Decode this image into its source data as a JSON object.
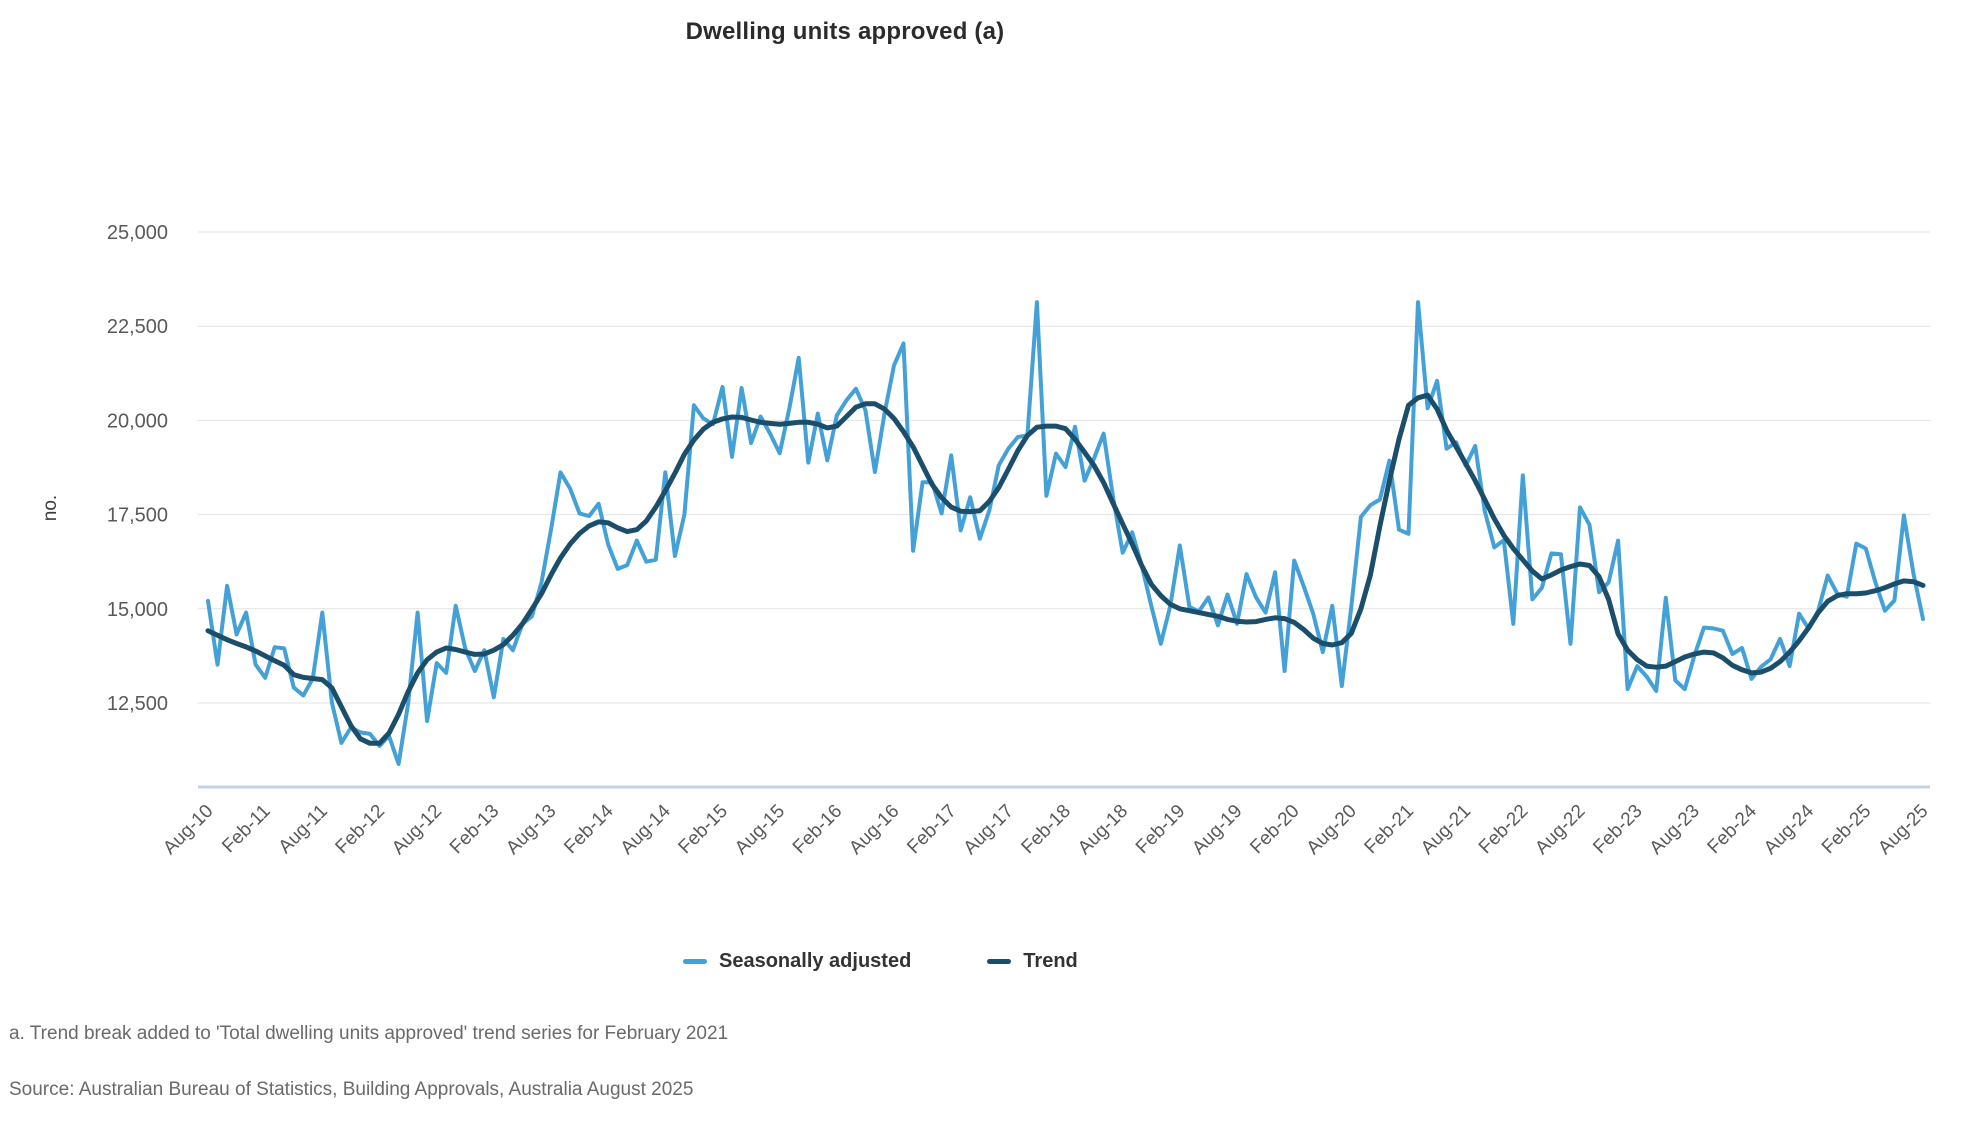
{
  "title": "Dwelling units approved (a)",
  "legend": {
    "seasonally_adjusted_label": "Seasonally adjusted",
    "trend_label": "Trend"
  },
  "footnotes": {
    "note_a": "a. Trend break added to 'Total dwelling units approved' trend series for February 2021",
    "source": "Source: Australian Bureau of Statistics, Building Approvals, Australia August 2025"
  },
  "colors": {
    "seasonally_adjusted": "#44a1d8",
    "trend": "#1b4e6b",
    "gridline": "#e2e2e2",
    "axis_line": "#c3d2e7",
    "tick_text": "#595959"
  },
  "chart_data": {
    "type": "line",
    "title": "Dwelling units approved (a)",
    "xlabel": "",
    "ylabel": "no.",
    "ylim": [
      10250,
      25000
    ],
    "grid": "horizontal",
    "legend_position": "bottom",
    "x_frequency": "monthly",
    "x_range": [
      "Aug-10",
      "Aug-25"
    ],
    "x_tick_labels": [
      "Aug-10",
      "Feb-11",
      "Aug-11",
      "Feb-12",
      "Aug-12",
      "Feb-13",
      "Aug-13",
      "Feb-14",
      "Aug-14",
      "Feb-15",
      "Aug-15",
      "Feb-16",
      "Aug-16",
      "Feb-17",
      "Aug-17",
      "Feb-18",
      "Aug-18",
      "Feb-19",
      "Aug-19",
      "Feb-20",
      "Aug-20",
      "Feb-21",
      "Aug-21",
      "Feb-22",
      "Aug-22",
      "Feb-23",
      "Aug-23",
      "Feb-24",
      "Aug-24",
      "Feb-25",
      "Aug-25"
    ],
    "x_ticks_every_n_months": 6,
    "y_ticks": {
      "labels": [
        "25,000",
        "22,500",
        "20,000",
        "17,500",
        "15,000",
        "12,500"
      ],
      "values": [
        25000,
        22500,
        20000,
        17500,
        15000,
        12500
      ]
    },
    "series": [
      {
        "name": "Seasonally adjusted",
        "color": "#44a1d8",
        "stroke_width": 4,
        "values": [
          15210,
          13520,
          15610,
          14320,
          14900,
          13520,
          13170,
          13980,
          13950,
          12910,
          12700,
          13150,
          14900,
          12510,
          11440,
          11850,
          11720,
          11680,
          11360,
          11630,
          10880,
          12480,
          14900,
          12020,
          13560,
          13300,
          15080,
          13940,
          13350,
          13900,
          12650,
          14200,
          13900,
          14600,
          14800,
          15700,
          17100,
          18620,
          18190,
          17530,
          17460,
          17790,
          16700,
          16060,
          16160,
          16810,
          16250,
          16300,
          18620,
          16400,
          17500,
          20400,
          20050,
          19900,
          20890,
          19030,
          20860,
          19400,
          20100,
          19650,
          19130,
          20300,
          21660,
          18880,
          20180,
          18940,
          20130,
          20530,
          20840,
          20270,
          18630,
          20180,
          21460,
          22040,
          16540,
          18360,
          18360,
          17530,
          19070,
          17080,
          17960,
          16860,
          17610,
          18810,
          19250,
          19560,
          19600,
          23140,
          18000,
          19120,
          18760,
          19830,
          18400,
          19000,
          19650,
          17950,
          16490,
          17030,
          16150,
          15080,
          14070,
          15080,
          16680,
          15050,
          14930,
          15300,
          14560,
          15380,
          14600,
          15920,
          15300,
          14900,
          15970,
          13350,
          16280,
          15600,
          14870,
          13850,
          15080,
          12950,
          15050,
          17440,
          17750,
          17900,
          18930,
          17100,
          16990,
          23140,
          20320,
          21050,
          19250,
          19420,
          18800,
          19320,
          17600,
          16630,
          16820,
          14600,
          18540,
          15250,
          15560,
          16470,
          16450,
          14070,
          17690,
          17230,
          15440,
          15700,
          16810,
          12870,
          13480,
          13200,
          12820,
          15290,
          13100,
          12870,
          13750,
          14500,
          14480,
          14420,
          13800,
          13960,
          13140,
          13460,
          13660,
          14200,
          13480,
          14870,
          14470,
          14950,
          15880,
          15400,
          15320,
          16730,
          16600,
          15700,
          14950,
          15220,
          17480,
          15930,
          14730
        ]
      },
      {
        "name": "Trend",
        "color": "#1b4e6b",
        "stroke_width": 5,
        "values": [
          14420,
          14300,
          14180,
          14080,
          13990,
          13880,
          13750,
          13620,
          13500,
          13250,
          13180,
          13150,
          13120,
          12900,
          12400,
          11900,
          11550,
          11430,
          11430,
          11700,
          12200,
          12800,
          13300,
          13650,
          13850,
          13960,
          13920,
          13850,
          13790,
          13800,
          13900,
          14050,
          14300,
          14600,
          14990,
          15400,
          15900,
          16350,
          16720,
          17000,
          17200,
          17310,
          17280,
          17150,
          17050,
          17100,
          17330,
          17700,
          18130,
          18600,
          19100,
          19480,
          19770,
          19950,
          20040,
          20090,
          20080,
          20010,
          19950,
          19920,
          19900,
          19920,
          19950,
          19950,
          19900,
          19800,
          19850,
          20100,
          20350,
          20440,
          20440,
          20300,
          20050,
          19700,
          19300,
          18800,
          18300,
          17950,
          17700,
          17590,
          17580,
          17600,
          17850,
          18220,
          18700,
          19200,
          19600,
          19820,
          19850,
          19850,
          19780,
          19500,
          19150,
          18800,
          18350,
          17800,
          17250,
          16720,
          16150,
          15650,
          15350,
          15120,
          15000,
          14950,
          14900,
          14850,
          14800,
          14720,
          14670,
          14650,
          14660,
          14720,
          14760,
          14740,
          14640,
          14450,
          14220,
          14080,
          14040,
          14100,
          14350,
          15000,
          15900,
          17200,
          18400,
          19500,
          20400,
          20600,
          20670,
          20300,
          19740,
          19300,
          18850,
          18400,
          17900,
          17390,
          16950,
          16600,
          16300,
          16000,
          15790,
          15900,
          16030,
          16120,
          16190,
          16150,
          15850,
          15250,
          14330,
          13900,
          13650,
          13480,
          13450,
          13480,
          13600,
          13720,
          13800,
          13850,
          13830,
          13700,
          13500,
          13380,
          13300,
          13320,
          13420,
          13600,
          13850,
          14150,
          14500,
          14900,
          15200,
          15350,
          15400,
          15400,
          15420,
          15480,
          15560,
          15660,
          15740,
          15720,
          15620
        ]
      }
    ]
  }
}
